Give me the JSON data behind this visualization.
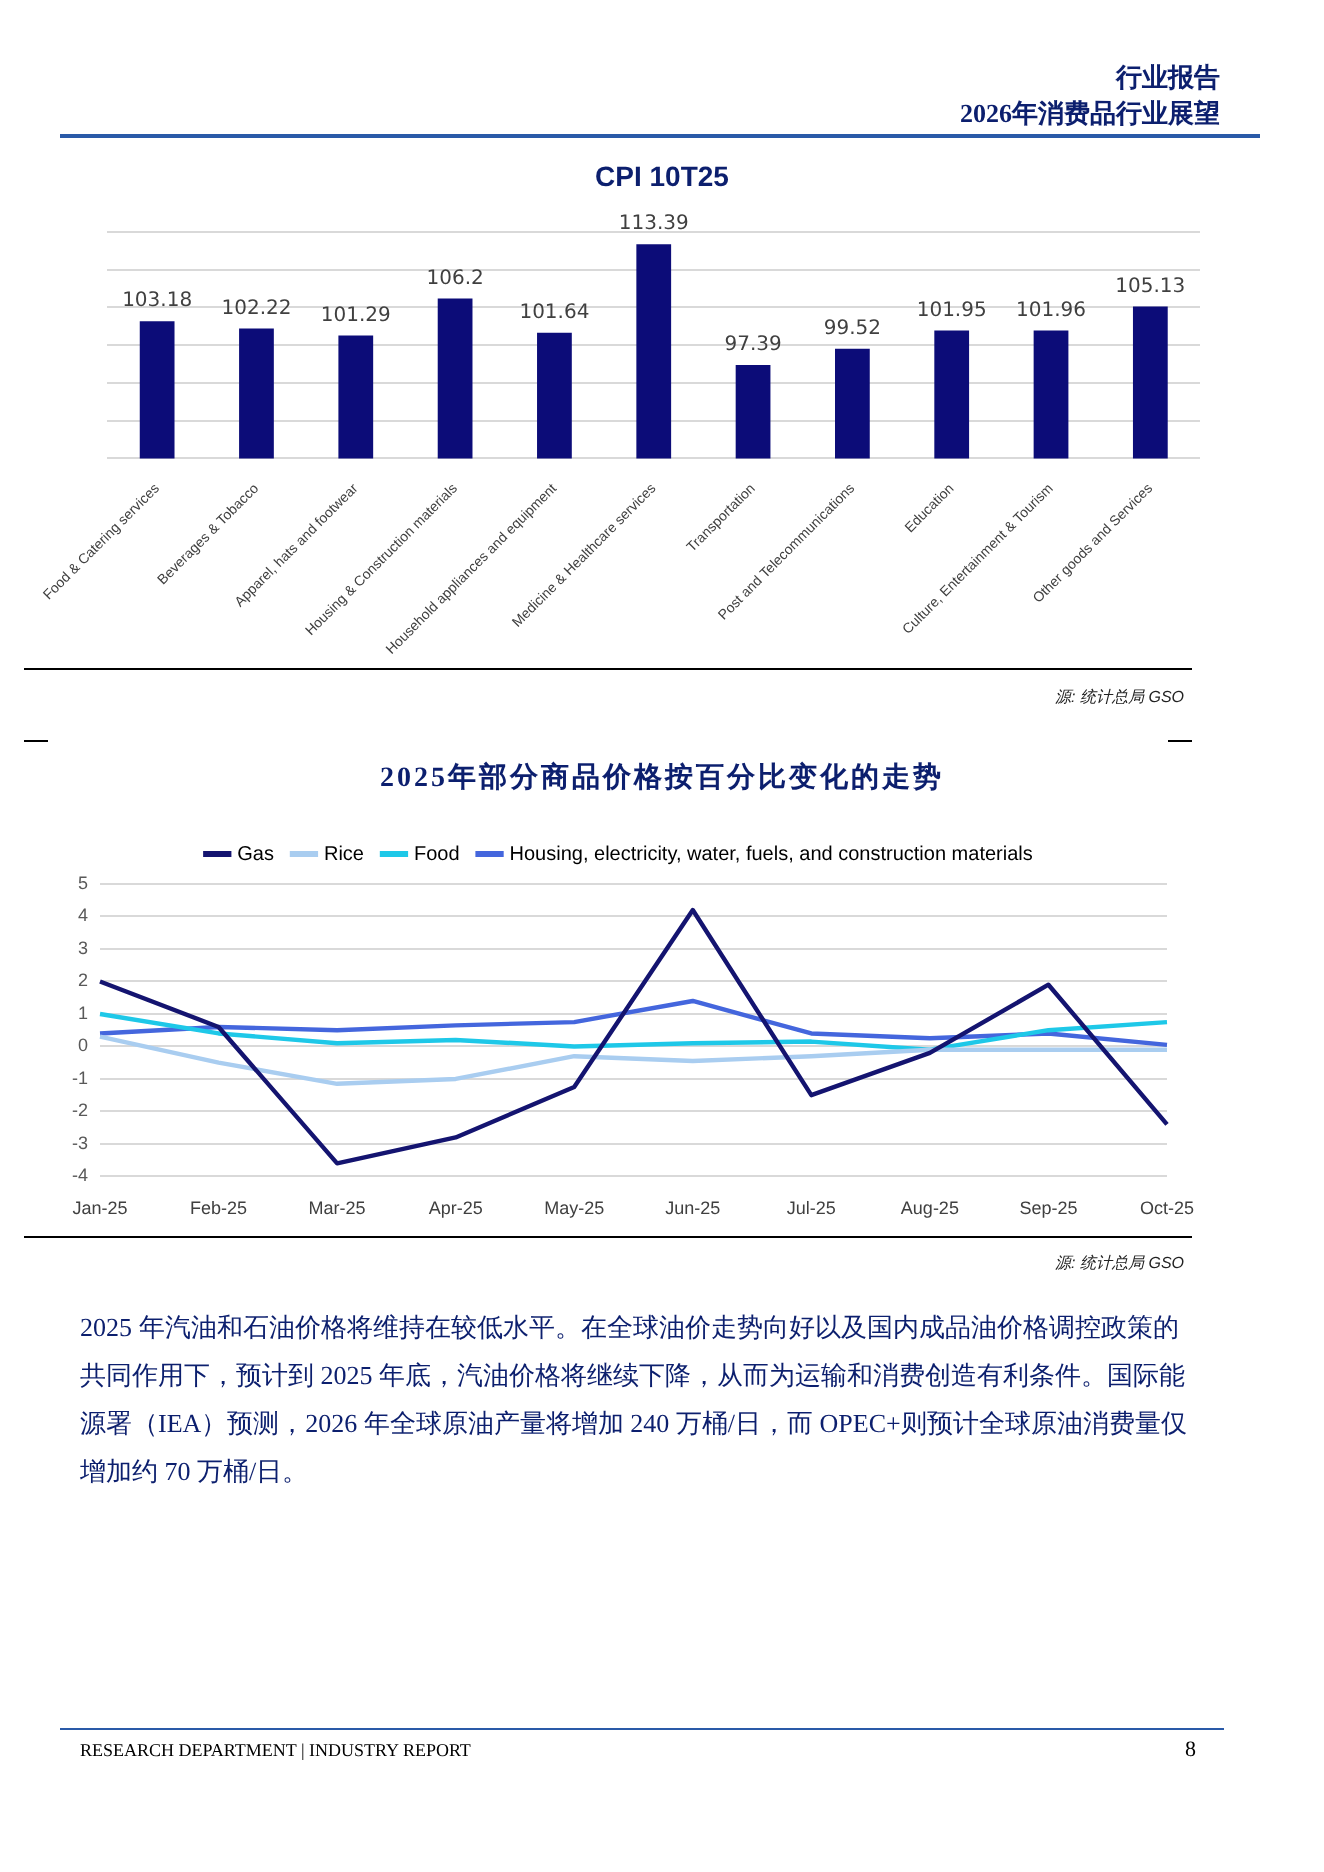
{
  "chart_data": [
    {
      "type": "bar",
      "title": "CPI 10T25",
      "categories": [
        "Food & Catering services",
        "Beverages & Tobacco",
        "Apparel, hats and footwear",
        "Housing & Construction materials",
        "Household appliances and equipment",
        "Medicine & Healthcare services",
        "Transportation",
        "Post and Telecommunications",
        "Education",
        "Culture, Entertainment & Tourism",
        "Other goods and Services"
      ],
      "values": [
        103.18,
        102.22,
        101.29,
        106.2,
        101.64,
        113.39,
        97.39,
        99.52,
        101.95,
        101.96,
        105.13
      ],
      "color": "#0c0c78",
      "ylim": [
        85,
        115
      ],
      "yticks": [
        {
          "value": 85,
          "label": null
        },
        {
          "value": 90,
          "label": null
        },
        {
          "value": 95,
          "label": null
        },
        {
          "value": 100,
          "label": null
        },
        {
          "value": 105,
          "label": null
        },
        {
          "value": 110,
          "label": null
        },
        {
          "value": 115,
          "label": null
        }
      ],
      "tick_labels": "x",
      "grid": "y",
      "data_labels": true,
      "legend": false,
      "annotations": [
        "行业报告",
        "2026年消费品行业展望",
        "源: 统计总局 GSO"
      ]
    },
    {
      "type": "line",
      "title": "2025年部分商品价格按百分比变化的走势",
      "categories": [
        "Jan-25",
        "Feb-25",
        "Mar-25",
        "Apr-25",
        "May-25",
        "Jun-25",
        "Jul-25",
        "Aug-25",
        "Sep-25",
        "Oct-25"
      ],
      "series": [
        {
          "name": "Gas",
          "color": "#141470",
          "values": [
            2.0,
            0.6,
            -3.6,
            -2.8,
            -1.25,
            4.2,
            -1.5,
            -0.2,
            1.9,
            -2.4
          ]
        },
        {
          "name": "Rice",
          "color": "#a9cdf0",
          "values": [
            0.3,
            -0.5,
            -1.15,
            -1.0,
            -0.3,
            -0.45,
            -0.3,
            -0.1,
            -0.1,
            -0.1
          ]
        },
        {
          "name": "Food",
          "color": "#1ec8e8",
          "values": [
            1.0,
            0.4,
            0.1,
            0.2,
            0.0,
            0.1,
            0.15,
            -0.1,
            0.5,
            0.75
          ]
        },
        {
          "name": "Housing, electricity, water, fuels, and construction materials",
          "color": "#4466dd",
          "values": [
            0.4,
            0.6,
            0.5,
            0.65,
            0.75,
            1.4,
            0.4,
            0.25,
            0.4,
            0.05
          ]
        }
      ],
      "ylim": [
        -4,
        5
      ],
      "yticks": [
        -4,
        -3,
        -2,
        -1,
        0,
        1,
        2,
        3,
        4,
        5
      ],
      "grid": "y",
      "legend": "top",
      "marker": "none",
      "line_style": "solid",
      "annotations": [
        "源: 统计总局 GSO",
        "2025 年汽油和石油价格将维持在较低水平。在全球油价走势向好以及国内成品油价格调控政策的共同作用下，预计到 2025 年底，汽油价格将继续下降，从而为运输和消费创造有利条件。国际能源署（IEA）预测，2026 年全球原油产量将增加 240 万桶/日，而 OPEC+则预计全球原油消费量仅增加约 70 万桶/日。",
        "RESEARCH DEPARTMENT | INDUSTRY REPORT",
        "8"
      ]
    }
  ]
}
